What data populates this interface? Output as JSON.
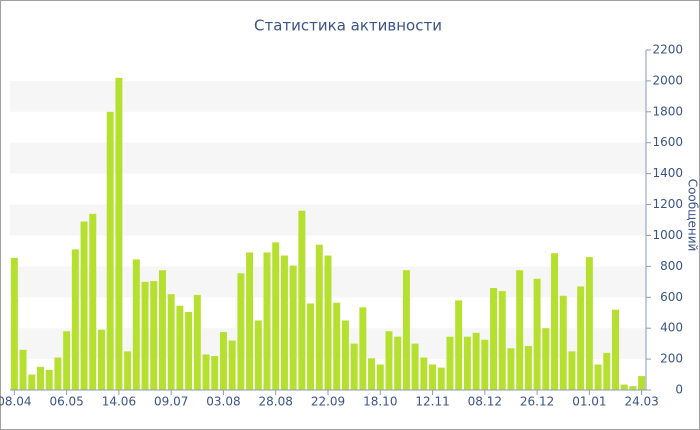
{
  "chart_data": {
    "type": "bar",
    "title": "Статистика активности",
    "y_axis_label": "Сообщений",
    "categories": [
      "08.04",
      null,
      null,
      null,
      null,
      null,
      "06.05",
      null,
      null,
      null,
      null,
      null,
      "14.06",
      null,
      null,
      null,
      null,
      null,
      "09.07",
      null,
      null,
      null,
      null,
      null,
      "03.08",
      null,
      null,
      null,
      null,
      null,
      "28.08",
      null,
      null,
      null,
      null,
      null,
      "22.09",
      null,
      null,
      null,
      null,
      null,
      "18.10",
      null,
      null,
      null,
      null,
      null,
      "12.11",
      null,
      null,
      null,
      null,
      null,
      "08.12",
      null,
      null,
      null,
      null,
      null,
      "26.12",
      null,
      null,
      null,
      null,
      null,
      "01.01",
      null,
      null,
      null,
      null,
      null,
      "24.03"
    ],
    "values": [
      855,
      260,
      100,
      150,
      130,
      210,
      380,
      910,
      1090,
      1140,
      390,
      1800,
      2020,
      250,
      845,
      700,
      705,
      775,
      620,
      545,
      505,
      615,
      230,
      220,
      375,
      320,
      755,
      890,
      450,
      890,
      955,
      870,
      805,
      1160,
      560,
      940,
      870,
      565,
      450,
      300,
      535,
      205,
      165,
      380,
      345,
      775,
      300,
      210,
      165,
      145,
      345,
      580,
      345,
      370,
      325,
      660,
      640,
      270,
      775,
      285,
      720,
      400,
      885,
      610,
      250,
      670,
      860,
      165,
      240,
      520,
      35,
      25,
      90
    ],
    "color": "#b5e02f",
    "ylim": [
      0,
      2200
    ],
    "yticks": [
      0,
      200,
      400,
      600,
      800,
      1000,
      1200,
      1400,
      1600,
      1800,
      2000,
      2200
    ],
    "y_axis_side": "right",
    "grid_bands": true
  }
}
